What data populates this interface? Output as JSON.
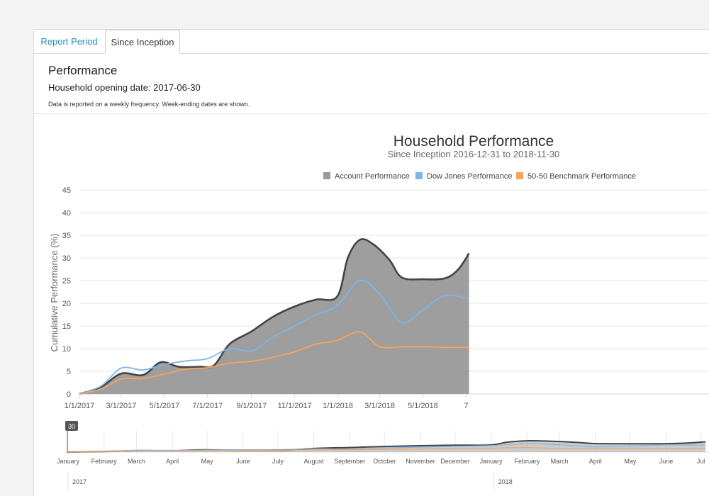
{
  "tabs": [
    {
      "label": "Report Period",
      "active": false
    },
    {
      "label": "Since Inception",
      "active": true
    }
  ],
  "section": {
    "title": "Performance",
    "opening_date": "Household opening date: 2017-06-30",
    "note": "Data is reported on a weekly frequency. Week-ending dates are shown."
  },
  "colors": {
    "account": "#999999",
    "account_line": "#444444",
    "dow": "#7cb5ec",
    "bench": "#f7a35c",
    "link": "#2a8ac9"
  },
  "chart_data": {
    "type": "area",
    "title": "Household Performance",
    "subtitle": "Since Inception 2016-12-31 to 2018-11-30",
    "ylabel": "Cumulative Performance (%)",
    "ylim": [
      0,
      45
    ],
    "yticks": [
      0,
      5,
      10,
      15,
      20,
      25,
      30,
      35,
      40,
      45
    ],
    "x_tick_labels": [
      "1/1/2017",
      "3/1/2017",
      "5/1/2017",
      "7/1/2017",
      "9/1/2017",
      "11/1/2017",
      "1/1/2018",
      "3/1/2018",
      "5/1/2018",
      "7"
    ],
    "legend_position": "top",
    "grid": true,
    "series": [
      {
        "name": "Account Performance",
        "kind": "area",
        "points": [
          [
            "2017-01-01",
            0
          ],
          [
            "2017-02-01",
            1.6
          ],
          [
            "2017-03-01",
            4.5
          ],
          [
            "2017-04-01",
            4.2
          ],
          [
            "2017-04-26",
            7
          ],
          [
            "2017-05-21",
            6
          ],
          [
            "2017-06-20",
            6
          ],
          [
            "2017-07-10",
            6.3
          ],
          [
            "2017-08-01",
            11
          ],
          [
            "2017-09-01",
            13.8
          ],
          [
            "2017-10-01",
            17
          ],
          [
            "2017-11-01",
            19.3
          ],
          [
            "2017-12-01",
            20.8
          ],
          [
            "2017-12-31",
            21.5
          ],
          [
            "2018-01-15",
            30
          ],
          [
            "2018-02-01",
            34
          ],
          [
            "2018-02-20",
            33
          ],
          [
            "2018-03-15",
            29.5
          ],
          [
            "2018-04-01",
            25.7
          ],
          [
            "2018-05-01",
            25.3
          ],
          [
            "2018-06-01",
            25.5
          ],
          [
            "2018-06-20",
            27.5
          ],
          [
            "2018-07-05",
            31
          ]
        ]
      },
      {
        "name": "Dow Jones Performance",
        "kind": "line",
        "points": [
          [
            "2017-01-01",
            0
          ],
          [
            "2017-02-01",
            1.8
          ],
          [
            "2017-03-01",
            5.7
          ],
          [
            "2017-04-01",
            5.3
          ],
          [
            "2017-05-01",
            6.5
          ],
          [
            "2017-06-01",
            7.3
          ],
          [
            "2017-07-01",
            7.8
          ],
          [
            "2017-08-01",
            10
          ],
          [
            "2017-09-01",
            9.5
          ],
          [
            "2017-10-01",
            12.5
          ],
          [
            "2017-11-01",
            15
          ],
          [
            "2017-12-01",
            17.5
          ],
          [
            "2017-12-31",
            19.5
          ],
          [
            "2018-02-01",
            25
          ],
          [
            "2018-03-01",
            22
          ],
          [
            "2018-04-01",
            15.8
          ],
          [
            "2018-05-01",
            18.5
          ],
          [
            "2018-06-01",
            21.7
          ],
          [
            "2018-07-05",
            21
          ]
        ]
      },
      {
        "name": "50-50 Benchmark Performance",
        "kind": "line",
        "points": [
          [
            "2017-01-01",
            0
          ],
          [
            "2017-02-01",
            1.1
          ],
          [
            "2017-03-01",
            3.3
          ],
          [
            "2017-04-01",
            3.4
          ],
          [
            "2017-05-01",
            4.4
          ],
          [
            "2017-06-01",
            5.5
          ],
          [
            "2017-07-01",
            5.8
          ],
          [
            "2017-08-01",
            6.8
          ],
          [
            "2017-09-01",
            7.2
          ],
          [
            "2017-10-01",
            8.1
          ],
          [
            "2017-11-01",
            9.3
          ],
          [
            "2017-12-01",
            11
          ],
          [
            "2017-12-31",
            11.8
          ],
          [
            "2018-02-01",
            13.7
          ],
          [
            "2018-03-01",
            10.4
          ],
          [
            "2018-04-01",
            10.4
          ],
          [
            "2018-05-01",
            10.4
          ],
          [
            "2018-06-01",
            10.3
          ],
          [
            "2018-07-05",
            10.3
          ]
        ]
      }
    ],
    "navigator": {
      "handle_label": "30",
      "month_labels": [
        "January",
        "February",
        "March",
        "April",
        "May",
        "June",
        "July",
        "August",
        "September",
        "October",
        "November",
        "December",
        "January",
        "February",
        "March",
        "April",
        "May",
        "June",
        "Jul"
      ],
      "year_labels": [
        "2017",
        "2018"
      ]
    }
  }
}
